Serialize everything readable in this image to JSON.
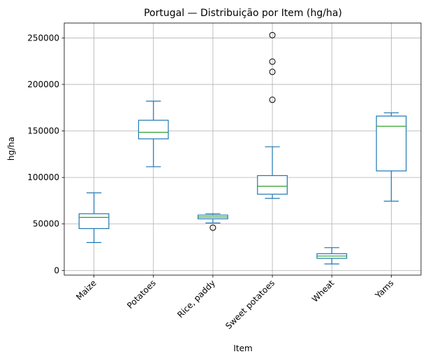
{
  "chart_data": {
    "type": "box",
    "title": "Portugal — Distribuição por Item (hg/ha)",
    "xlabel": "Item",
    "ylabel": "hg/ha",
    "ylim": [
      -5000,
      266000
    ],
    "yticks": [
      0,
      50000,
      100000,
      150000,
      200000,
      250000
    ],
    "ytick_labels": [
      "0",
      "50000",
      "100000",
      "150000",
      "200000",
      "250000"
    ],
    "grid": true,
    "categories": [
      "Maize",
      "Potatoes",
      "Rice, paddy",
      "Sweet potatoes",
      "Wheat",
      "Yams"
    ],
    "boxes": [
      {
        "category": "Maize",
        "whisker_low": 30000,
        "q1": 45000,
        "median": 57000,
        "q3": 61000,
        "whisker_high": 83500,
        "outliers": []
      },
      {
        "category": "Potatoes",
        "whisker_low": 111500,
        "q1": 141500,
        "median": 148500,
        "q3": 161500,
        "whisker_high": 182000,
        "outliers": []
      },
      {
        "category": "Rice, paddy",
        "whisker_low": 51000,
        "q1": 55500,
        "median": 57500,
        "q3": 59500,
        "whisker_high": 61000,
        "outliers": [
          46000
        ]
      },
      {
        "category": "Sweet potatoes",
        "whisker_low": 77500,
        "q1": 82000,
        "median": 90500,
        "q3": 102000,
        "whisker_high": 133000,
        "outliers": [
          183500,
          213500,
          224500,
          253000
        ]
      },
      {
        "category": "Wheat",
        "whisker_low": 7000,
        "q1": 13000,
        "median": 15500,
        "q3": 18000,
        "whisker_high": 24500,
        "outliers": []
      },
      {
        "category": "Yams",
        "whisker_low": 74500,
        "q1": 107000,
        "median": 155000,
        "q3": 166000,
        "whisker_high": 169500,
        "outliers": []
      }
    ],
    "colors": {
      "box": "#1f77b4",
      "median": "#2ca02c",
      "grid": "#b0b0b0",
      "outlier": "#000000",
      "axes": "#000000"
    }
  }
}
